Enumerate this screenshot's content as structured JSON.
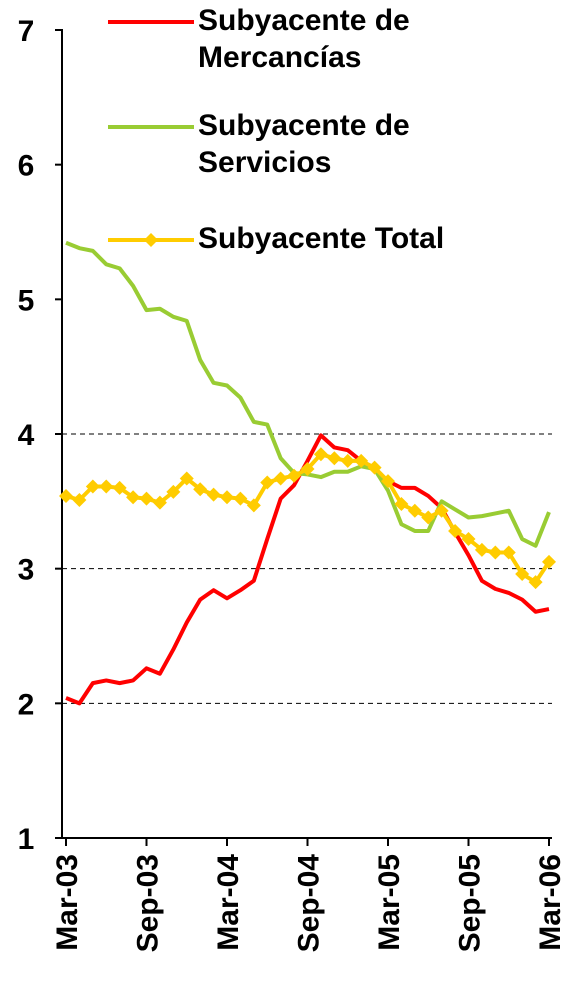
{
  "chart_data": {
    "type": "line",
    "categories": [
      "Mar-03",
      null,
      null,
      null,
      null,
      null,
      "Sep-03",
      null,
      null,
      null,
      null,
      null,
      "Mar-04",
      null,
      null,
      null,
      null,
      null,
      "Sep-04",
      null,
      null,
      null,
      null,
      null,
      "Mar-05",
      null,
      null,
      null,
      null,
      null,
      "Sep-05",
      null,
      null,
      null,
      null,
      null,
      "Mar-06"
    ],
    "series": [
      {
        "name": "Subyacente de Mercancías",
        "color": "#ff0000",
        "marker": false,
        "values": [
          2.04,
          2.0,
          2.15,
          2.17,
          2.15,
          2.17,
          2.26,
          2.22,
          2.4,
          2.6,
          2.77,
          2.84,
          2.78,
          2.84,
          2.91,
          3.22,
          3.52,
          3.62,
          3.8,
          3.99,
          3.9,
          3.88,
          3.8,
          3.73,
          3.65,
          3.6,
          3.6,
          3.54,
          3.45,
          3.27,
          3.1,
          2.91,
          2.85,
          2.82,
          2.77,
          2.68,
          2.7
        ]
      },
      {
        "name": "Subyacente de Servicios",
        "color": "#99cc33",
        "marker": false,
        "values": [
          5.42,
          5.38,
          5.36,
          5.26,
          5.23,
          5.1,
          4.92,
          4.93,
          4.87,
          4.84,
          4.55,
          4.38,
          4.36,
          4.27,
          4.09,
          4.07,
          3.82,
          3.71,
          3.7,
          3.68,
          3.72,
          3.72,
          3.76,
          3.74,
          3.58,
          3.33,
          3.28,
          3.28,
          3.5,
          3.44,
          3.38,
          3.39,
          3.41,
          3.43,
          3.22,
          3.17,
          3.42
        ]
      },
      {
        "name": "Subyacente Total",
        "color": "#ffcc00",
        "marker": true,
        "values": [
          3.54,
          3.51,
          3.61,
          3.61,
          3.6,
          3.53,
          3.52,
          3.49,
          3.57,
          3.67,
          3.59,
          3.55,
          3.53,
          3.52,
          3.47,
          3.64,
          3.67,
          3.69,
          3.74,
          3.85,
          3.82,
          3.8,
          3.8,
          3.75,
          3.65,
          3.48,
          3.43,
          3.38,
          3.43,
          3.28,
          3.22,
          3.14,
          3.12,
          3.12,
          2.96,
          2.9,
          3.05
        ]
      }
    ],
    "ylim": [
      1,
      7
    ],
    "yticks": [
      1,
      2,
      3,
      4,
      5,
      6,
      7
    ],
    "gridlines": [
      2,
      3,
      4
    ],
    "legend": "top-left"
  }
}
